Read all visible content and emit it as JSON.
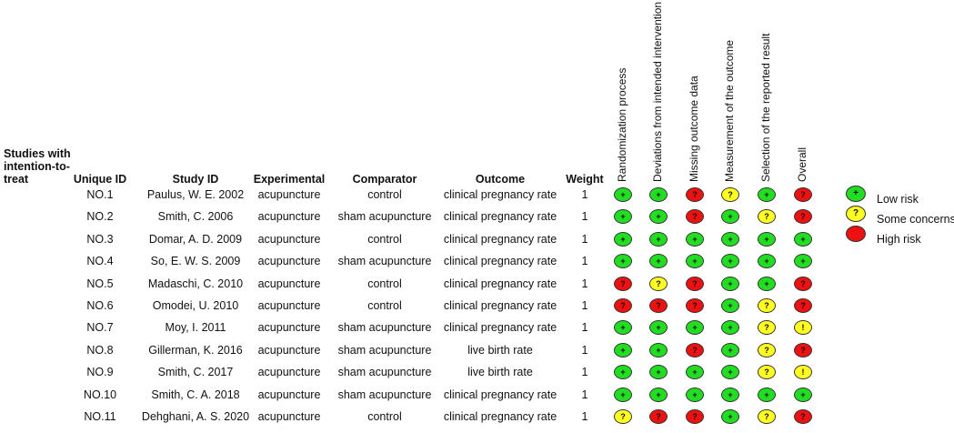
{
  "title": "Studies with intention-to-treat",
  "columns": {
    "unique_id": "Unique ID",
    "study_id": "Study ID",
    "experimental": "Experimental",
    "comparator": "Comparator",
    "outcome": "Outcome",
    "weight": "Weight"
  },
  "domains": [
    "Randomization process",
    "Deviations from intended intervention",
    "Missing outcome data",
    "Measurement of the outcome",
    "Selection of the reported result",
    "Overall"
  ],
  "judgement_symbols": {
    "low": "+",
    "some": "?",
    "high": "?",
    "overall_some": "!"
  },
  "colors": {
    "low": "#22dd22",
    "some": "#ffff22",
    "high": "#ee1111"
  },
  "legend": [
    {
      "level": "low",
      "symbol": "+",
      "label": "Low risk"
    },
    {
      "level": "some",
      "symbol": "?",
      "label": "Some concerns"
    },
    {
      "level": "high",
      "symbol": "",
      "label": "High risk"
    }
  ],
  "rows": [
    {
      "id": "NO.1",
      "study": "Paulus, W. E. 2002",
      "experimental": "acupuncture",
      "comparator": "control",
      "outcome": "clinical pregnancy rate",
      "weight": "1",
      "risk": [
        "low",
        "low",
        "high",
        "some",
        "low",
        "high"
      ]
    },
    {
      "id": "NO.2",
      "study": "Smith, C. 2006",
      "experimental": "acupuncture",
      "comparator": "sham acupuncture",
      "outcome": "clinical pregnancy rate",
      "weight": "1",
      "risk": [
        "low",
        "low",
        "high",
        "low",
        "some",
        "high"
      ]
    },
    {
      "id": "NO.3",
      "study": "Domar, A. D. 2009",
      "experimental": "acupuncture",
      "comparator": "control",
      "outcome": "clinical pregnancy rate",
      "weight": "1",
      "risk": [
        "low",
        "low",
        "low",
        "low",
        "low",
        "low"
      ]
    },
    {
      "id": "NO.4",
      "study": "So, E. W. S. 2009",
      "experimental": "acupuncture",
      "comparator": "sham acupuncture",
      "outcome": "clinical pregnancy rate",
      "weight": "1",
      "risk": [
        "low",
        "low",
        "low",
        "low",
        "low",
        "low"
      ]
    },
    {
      "id": "NO.5",
      "study": "Madaschi, C. 2010",
      "experimental": "acupuncture",
      "comparator": "control",
      "outcome": "clinical pregnancy rate",
      "weight": "1",
      "risk": [
        "high",
        "some",
        "high",
        "low",
        "low",
        "high"
      ]
    },
    {
      "id": "NO.6",
      "study": "Omodei, U. 2010",
      "experimental": "acupuncture",
      "comparator": "control",
      "outcome": "clinical pregnancy rate",
      "weight": "1",
      "risk": [
        "high",
        "high",
        "high",
        "low",
        "some",
        "high"
      ]
    },
    {
      "id": "NO.7",
      "study": "Moy, I. 2011",
      "experimental": "acupuncture",
      "comparator": "sham acupuncture",
      "outcome": "clinical pregnancy rate",
      "weight": "1",
      "risk": [
        "low",
        "low",
        "low",
        "low",
        "some",
        "some"
      ]
    },
    {
      "id": "NO.8",
      "study": "Gillerman, K. 2016",
      "experimental": "acupuncture",
      "comparator": "sham acupuncture",
      "outcome": "live birth rate",
      "weight": "1",
      "risk": [
        "low",
        "low",
        "high",
        "low",
        "some",
        "high"
      ]
    },
    {
      "id": "NO.9",
      "study": "Smith, C. 2017",
      "experimental": "acupuncture",
      "comparator": "sham acupuncture",
      "outcome": "live birth rate",
      "weight": "1",
      "risk": [
        "low",
        "low",
        "low",
        "low",
        "some",
        "some"
      ]
    },
    {
      "id": "NO.10",
      "study": "Smith, C. A. 2018",
      "experimental": "acupuncture",
      "comparator": "sham acupuncture",
      "outcome": "clinical pregnancy rate",
      "weight": "1",
      "risk": [
        "low",
        "low",
        "low",
        "low",
        "low",
        "low"
      ]
    },
    {
      "id": "NO.11",
      "study": "Dehghani, A. S. 2020",
      "experimental": "acupuncture",
      "comparator": "control",
      "outcome": "clinical pregnancy rate",
      "weight": "1",
      "risk": [
        "some",
        "high",
        "high",
        "low",
        "some",
        "high"
      ]
    }
  ]
}
